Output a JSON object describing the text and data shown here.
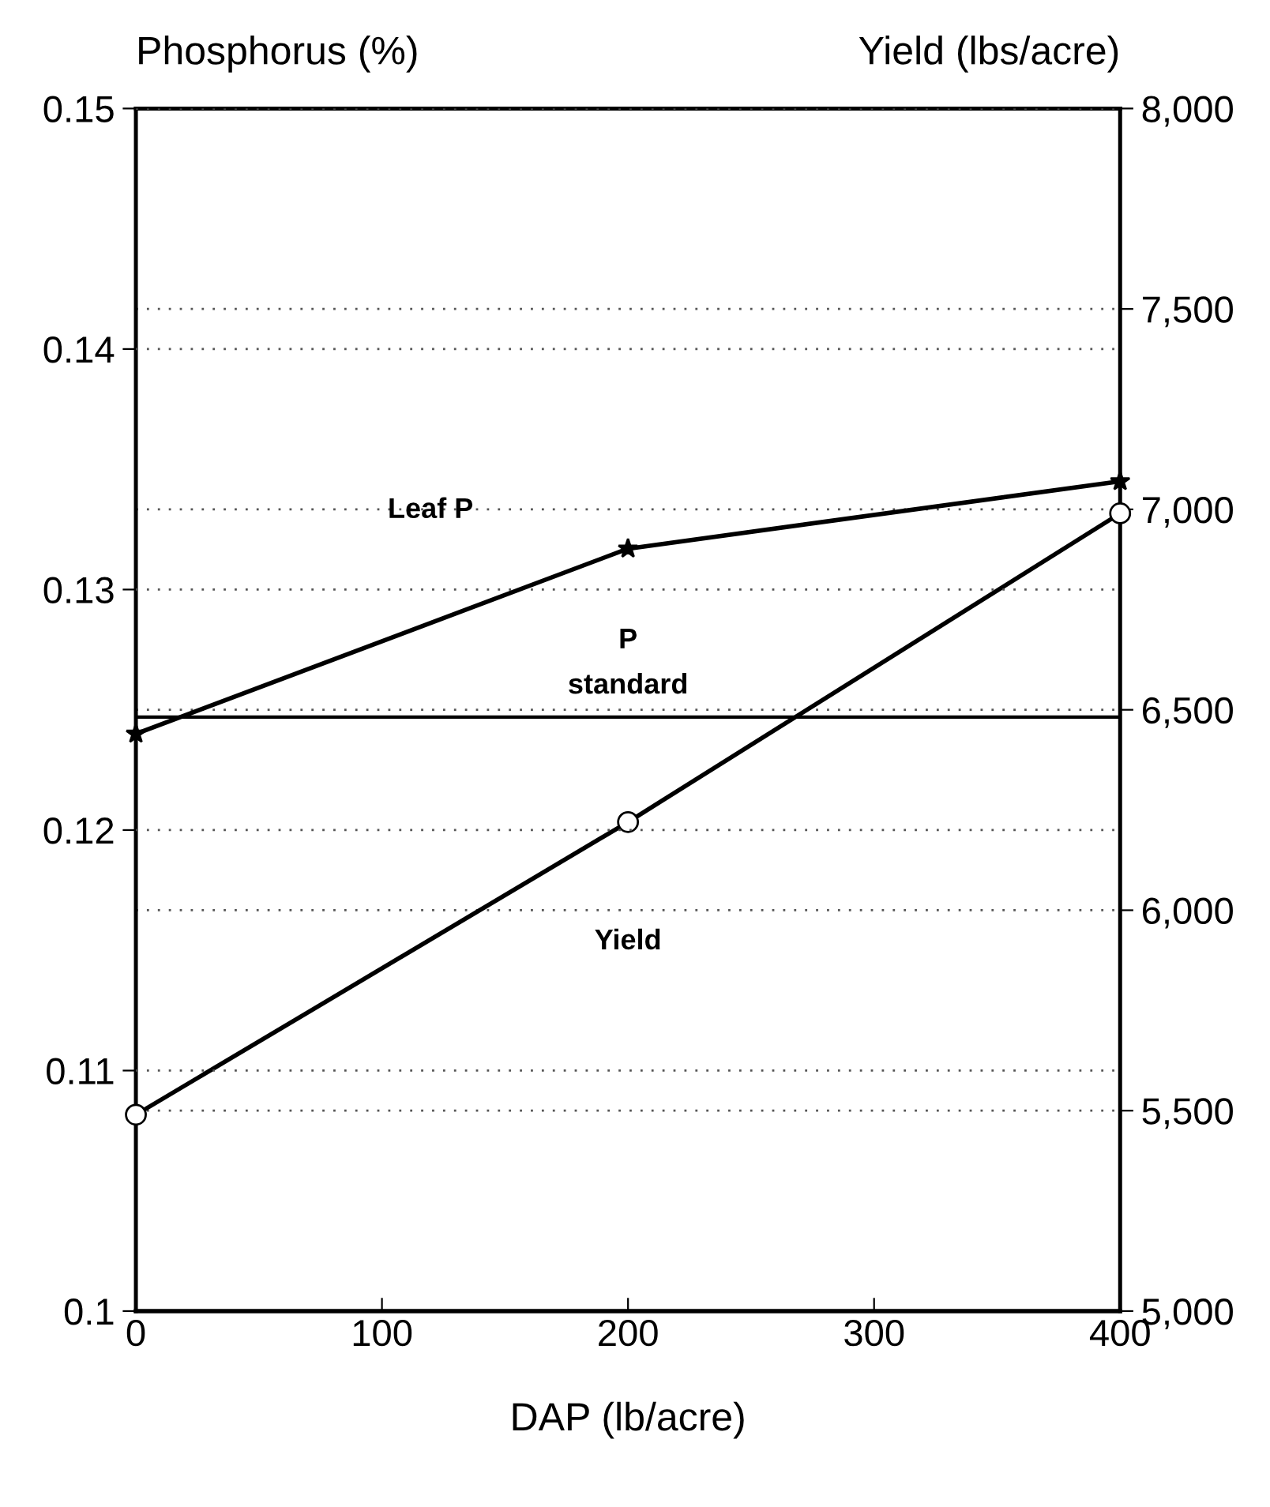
{
  "chart_data": {
    "type": "line",
    "ylabel": "Phosphorus (%)",
    "y2label": "Yield (lbs/acre)",
    "xlabel": "DAP (lb/acre)",
    "x": [
      0,
      200,
      400
    ],
    "series": [
      {
        "name": "Leaf P",
        "color": "#000000",
        "marker": "star",
        "values": [
          0.124,
          0.1317,
          0.1345
        ]
      },
      {
        "name": "Yield",
        "color": "#000000",
        "marker": "circle",
        "axis": "y2",
        "values": [
          5490,
          6220,
          6990
        ]
      }
    ],
    "xlim": [
      0,
      400
    ],
    "xticks": [
      0,
      100,
      200,
      300,
      400
    ],
    "ylim": [
      0.1,
      0.15
    ],
    "yticks": [
      0.1,
      0.11,
      0.12,
      0.13,
      0.14,
      0.15
    ],
    "y2lim": [
      5000,
      8000
    ],
    "y2ticks": [
      {
        "value": 5000,
        "label": "5,000"
      },
      {
        "value": 5500,
        "label": "5,500"
      },
      {
        "value": 6000,
        "label": "6,000"
      },
      {
        "value": 6500,
        "label": "6,500"
      },
      {
        "value": 7000,
        "label": "7,000"
      },
      {
        "value": 7500,
        "label": "7,500"
      },
      {
        "value": 8000,
        "label": "8,000"
      }
    ],
    "ref_lines": [
      {
        "axis": "y",
        "value": 0.1247,
        "label": "P\nstandard",
        "color": "#000000",
        "line_style": "solid"
      }
    ],
    "grid": "y",
    "legend": false,
    "line_style": "solid"
  }
}
